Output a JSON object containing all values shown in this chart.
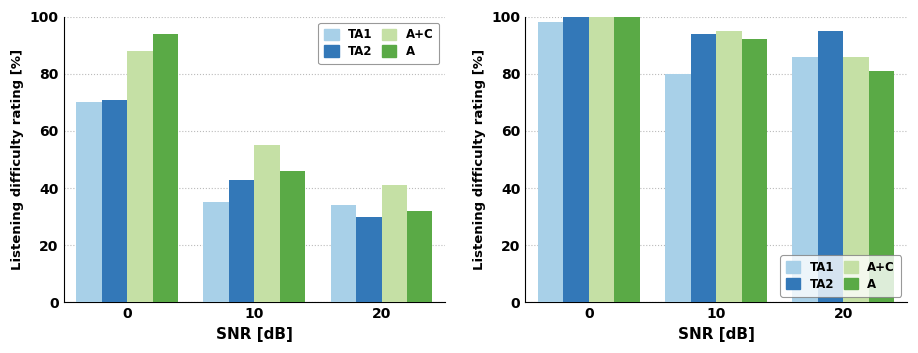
{
  "left": {
    "snr_labels": [
      "0",
      "10",
      "20"
    ],
    "series": {
      "TA1": [
        70,
        35,
        34
      ],
      "TA2": [
        71,
        43,
        30
      ],
      "A+C": [
        88,
        55,
        41
      ],
      "A": [
        94,
        46,
        32
      ]
    },
    "ylabel": "Listening difficulty rating [%]",
    "xlabel": "SNR [dB]",
    "ylim": [
      0,
      100
    ],
    "yticks": [
      0,
      20,
      40,
      60,
      80,
      100
    ],
    "legend_loc": "upper right"
  },
  "right": {
    "snr_labels": [
      "0",
      "10",
      "20"
    ],
    "series": {
      "TA1": [
        98,
        80,
        86
      ],
      "TA2": [
        100,
        94,
        95
      ],
      "A+C": [
        100,
        95,
        86
      ],
      "A": [
        100,
        92,
        81
      ]
    },
    "ylabel": "Listening difficulty rating [%]",
    "xlabel": "SNR [dB]",
    "ylim": [
      0,
      100
    ],
    "yticks": [
      0,
      20,
      40,
      60,
      80,
      100
    ],
    "legend_loc": "lower right"
  },
  "colors": {
    "TA1": "#a8d0e8",
    "TA2": "#3378b8",
    "A+C": "#c5e0a5",
    "A": "#5aaa46"
  },
  "bar_width": 0.2,
  "legend_labels": [
    "TA1",
    "TA2",
    "A+C",
    "A"
  ]
}
